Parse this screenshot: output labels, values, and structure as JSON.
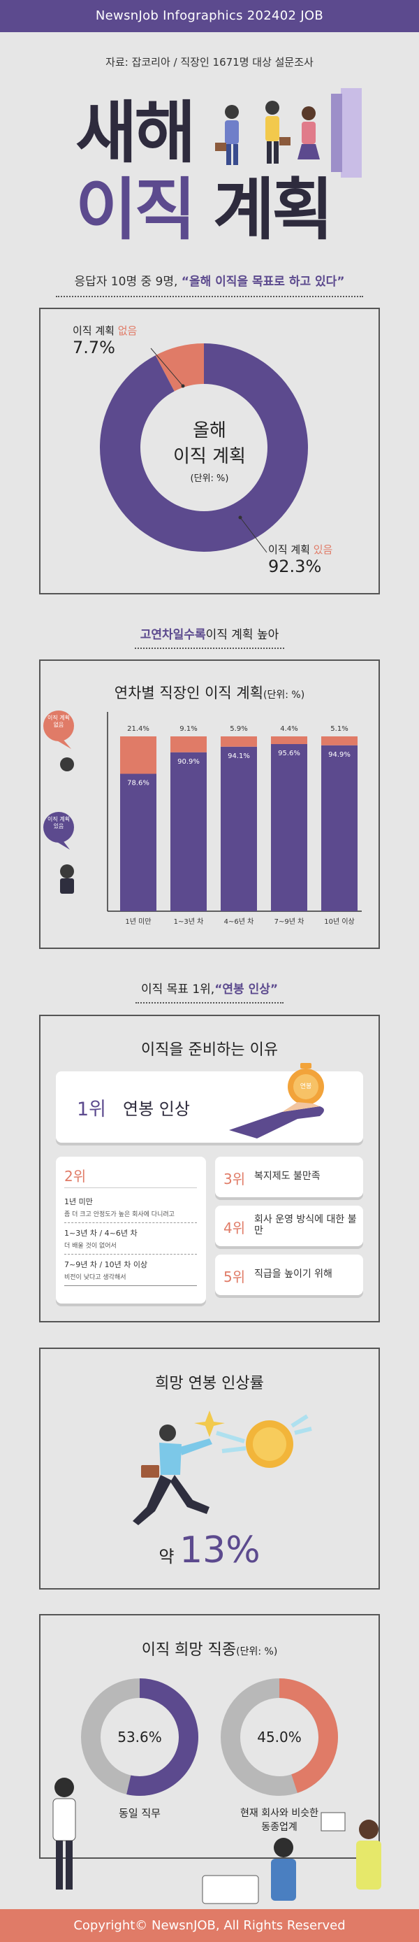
{
  "header": {
    "brand": "NewsnJob Infographics 202402 JOB"
  },
  "source": "자료: 잡코리아 / 직장인 1671명 대상 설문조사",
  "title": {
    "line1": "새해",
    "line2a": "이직",
    "line2b": "계획"
  },
  "summary": {
    "prefix": "응답자 10명 중 9명, ",
    "highlight": "“올해 이직을 목표로 하고 있다”"
  },
  "donut1": {
    "center_line1": "올해",
    "center_line2": "이직 계획",
    "center_unit": "(단위: %)",
    "no_label_a": "이직 계획 ",
    "no_label_b": "없음",
    "no_value": "7.7%",
    "yes_label_a": "이직 계획 ",
    "yes_label_b": "있음",
    "yes_value": "92.3%"
  },
  "section2": {
    "label_highlight": "고연차일수록",
    "label_rest": " 이직 계획 높아",
    "chart_title": "연차별 직장인 이직 계획",
    "chart_unit": "(단위: %)",
    "bubble_no": "이직 계획 없음",
    "bubble_yes": "이직 계획 있음"
  },
  "section3": {
    "label_prefix": "이직 목표 1위, ",
    "label_highlight": "“연봉 인상”",
    "title": "이직을 준비하는 이유",
    "first_rank": "1위",
    "first_text": "연봉 인상",
    "coin_text": "연봉",
    "second_rank": "2위",
    "second_items": [
      {
        "head": "1년 미만",
        "sub": "좀 더 크고 안정도가 높은 회사에 다니려고"
      },
      {
        "head": "1~3년 차 / 4~6년 차",
        "sub": "더 배울 것이 없어서"
      },
      {
        "head": "7~9년 차 / 10년 차 이상",
        "sub": "비전이 낮다고 생각해서"
      }
    ],
    "others": [
      {
        "rank": "3위",
        "text": "복지제도 불만족"
      },
      {
        "rank": "4위",
        "text": "회사 운영 방식에 대한 불만"
      },
      {
        "rank": "5위",
        "text": "직급을 높이기 위해"
      }
    ]
  },
  "section4": {
    "title": "희망 연봉 인상률",
    "prefix": "약 ",
    "value": "13%"
  },
  "section5": {
    "title": "이직 희망 직종",
    "unit": "(단위: %)",
    "left_value": "53.6%",
    "left_label": "동일 직무",
    "right_value": "45.0%",
    "right_label_1": "현재 회사와 비슷한",
    "right_label_2": "동종업계"
  },
  "footer": {
    "text": "Copyright© NewsnJOB, All Rights Reserved"
  },
  "colors": {
    "purple": "#5c4a8e",
    "coral": "#e07b67",
    "gray": "#b8b8b8"
  },
  "chart_data": [
    {
      "type": "pie",
      "title": "올해 이직 계획",
      "unit": "%",
      "categories": [
        "이직 계획 있음",
        "이직 계획 없음"
      ],
      "values": [
        92.3,
        7.7
      ]
    },
    {
      "type": "bar",
      "title": "연차별 직장인 이직 계획",
      "unit": "%",
      "stacked": true,
      "categories": [
        "1년 미만",
        "1~3년 차",
        "4~6년 차",
        "7~9년 차",
        "10년 이상"
      ],
      "series": [
        {
          "name": "이직 계획 있음",
          "values": [
            78.6,
            90.9,
            94.1,
            95.6,
            94.9
          ]
        },
        {
          "name": "이직 계획 없음",
          "values": [
            21.4,
            9.1,
            5.9,
            4.4,
            5.1
          ]
        }
      ],
      "ylim": [
        0,
        100
      ]
    },
    {
      "type": "pie",
      "title": "동일 직무",
      "values": [
        53.6
      ]
    },
    {
      "type": "pie",
      "title": "현재 회사와 비슷한 동종업계",
      "values": [
        45.0
      ]
    }
  ]
}
